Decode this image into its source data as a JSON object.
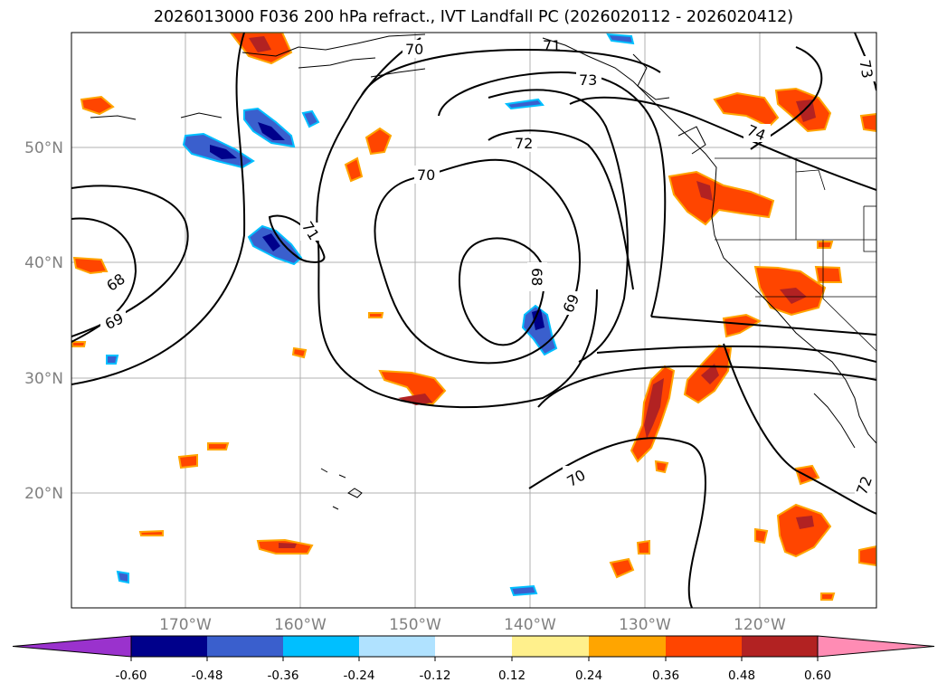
{
  "title": "2026013000 F036 200 hPa refract., IVT Landfall PC (2026020112 - 2026020412)",
  "map": {
    "lat_ticks": [
      "50°N",
      "40°N",
      "30°N",
      "20°N"
    ],
    "lon_ticks": [
      "170°W",
      "160°W",
      "150°W",
      "140°W",
      "130°W",
      "120°W"
    ],
    "contour_labels": [
      "70",
      "71",
      "73",
      "74",
      "72",
      "70",
      "71",
      "68",
      "69",
      "68",
      "69",
      "70",
      "72",
      "73"
    ]
  },
  "colorbar": {
    "labels": [
      "-0.60",
      "-0.48",
      "-0.36",
      "-0.24",
      "-0.12",
      "0.12",
      "0.24",
      "0.36",
      "0.48",
      "0.60"
    ],
    "colors": [
      "#9a32cd",
      "#00008b",
      "#3a5fcd",
      "#00bfff",
      "#b0e2ff",
      "#ffffff",
      "#fff08c",
      "#ffa500",
      "#ff4500",
      "#b22222",
      "#ff8cb4"
    ]
  }
}
